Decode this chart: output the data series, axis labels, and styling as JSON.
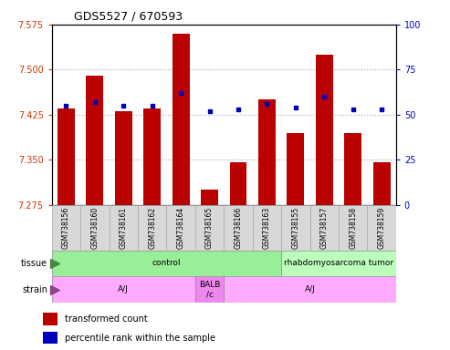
{
  "title": "GDS5527 / 670593",
  "samples": [
    "GSM738156",
    "GSM738160",
    "GSM738161",
    "GSM738162",
    "GSM738164",
    "GSM738165",
    "GSM738166",
    "GSM738163",
    "GSM738155",
    "GSM738157",
    "GSM738158",
    "GSM738159"
  ],
  "transformed_count": [
    7.435,
    7.49,
    7.43,
    7.435,
    7.56,
    7.3,
    7.345,
    7.45,
    7.395,
    7.525,
    7.395,
    7.345
  ],
  "percentile_rank": [
    55,
    57,
    55,
    55,
    62,
    52,
    53,
    56,
    54,
    60,
    53,
    53
  ],
  "ylim_left": [
    7.275,
    7.575
  ],
  "ylim_right": [
    0,
    100
  ],
  "yticks_left": [
    7.275,
    7.35,
    7.425,
    7.5,
    7.575
  ],
  "yticks_right": [
    0,
    25,
    50,
    75,
    100
  ],
  "bar_color": "#bb0000",
  "dot_color": "#0000bb",
  "bar_bottom": 7.275,
  "grid_yticks": [
    7.35,
    7.425,
    7.5
  ],
  "tissue_groups": [
    {
      "label": "control",
      "start": 0,
      "end": 8,
      "color": "#99ee99"
    },
    {
      "label": "rhabdomyosarcoma tumor",
      "start": 8,
      "end": 12,
      "color": "#bbffbb"
    }
  ],
  "strain_groups": [
    {
      "label": "A/J",
      "start": 0,
      "end": 5,
      "color": "#ffaaff"
    },
    {
      "label": "BALB\n/c",
      "start": 5,
      "end": 6,
      "color": "#ee88ee"
    },
    {
      "label": "A/J",
      "start": 6,
      "end": 12,
      "color": "#ffaaff"
    }
  ],
  "axis_color_left": "#cc3300",
  "axis_color_right": "#0000cc",
  "label_bg": "#d8d8d8",
  "label_border": "#aaaaaa"
}
